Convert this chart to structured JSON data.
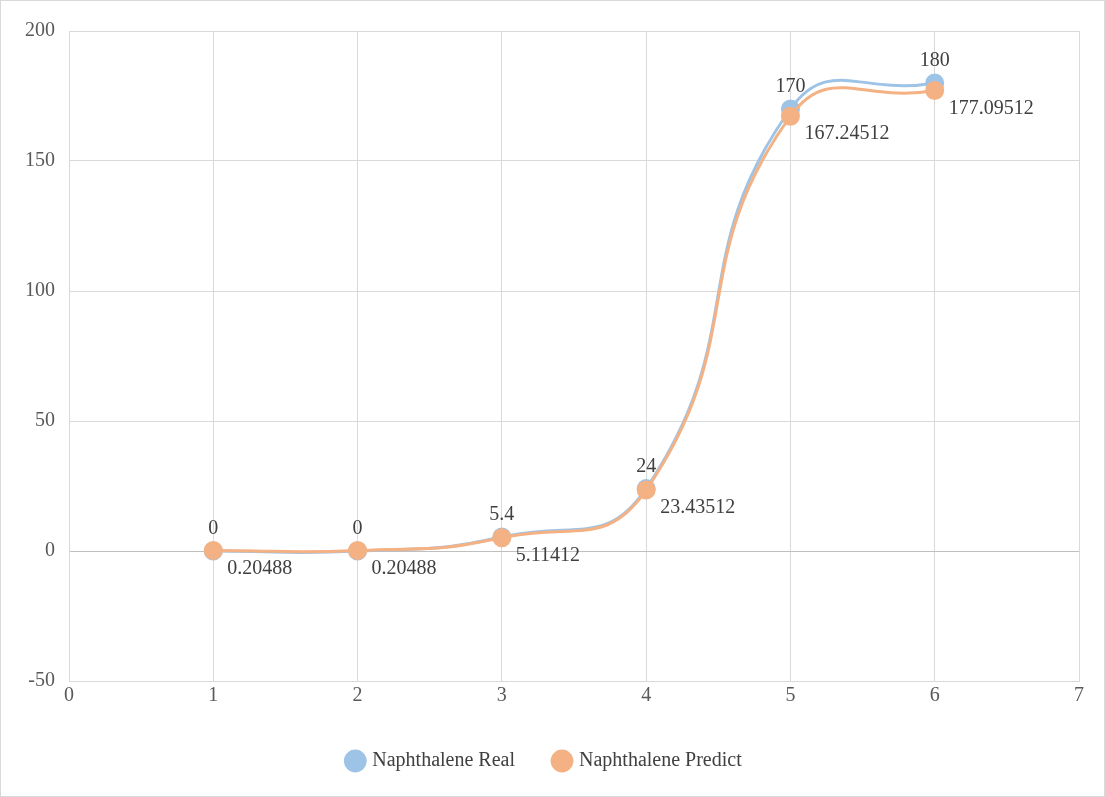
{
  "chart_data": {
    "type": "line",
    "x": [
      1,
      2,
      3,
      4,
      5,
      6
    ],
    "series": [
      {
        "name": "Naphthalene Real",
        "color": "#9dc3e6",
        "values": [
          0,
          0,
          5.4,
          24,
          170,
          180
        ]
      },
      {
        "name": "Naphthalene Predict",
        "color": "#f4b183",
        "values": [
          0.20488,
          0.20488,
          5.11412,
          23.43512,
          167.24512,
          177.09512
        ]
      }
    ],
    "xlim": [
      0,
      7
    ],
    "xticks": [
      0,
      1,
      2,
      3,
      4,
      5,
      6,
      7
    ],
    "ylim": [
      -50,
      200
    ],
    "yticks": [
      -50,
      0,
      50,
      100,
      150,
      200
    ],
    "grid": true,
    "legend": "bottom",
    "marker": "circle",
    "data_labels": true
  }
}
